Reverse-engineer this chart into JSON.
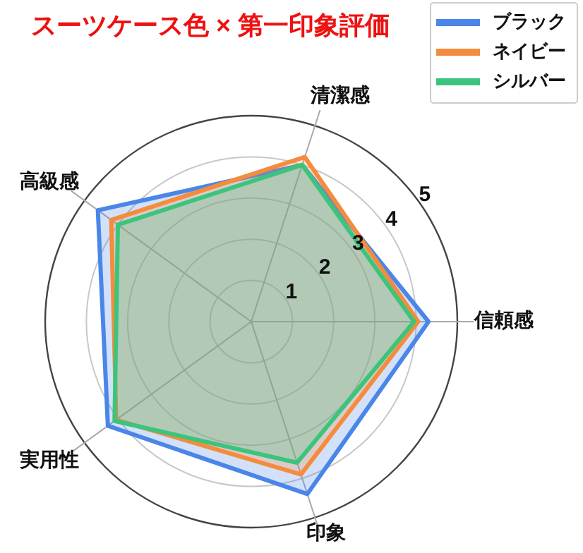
{
  "chart_data": {
    "type": "radar",
    "title": "スーツケース色 × 第一印象評価",
    "categories": [
      "清潔感",
      "信頼感",
      "印象",
      "実用性",
      "高級感"
    ],
    "ylim": [
      0,
      5
    ],
    "yticks": [
      1,
      2,
      3,
      4,
      5
    ],
    "legend": "top right",
    "series": [
      {
        "name": "ブラック",
        "color": "#4a86e8",
        "values": [
          4.0,
          4.3,
          4.4,
          4.3,
          4.6
        ]
      },
      {
        "name": "ネイビー",
        "color": "#f58b3c",
        "values": [
          4.2,
          4.05,
          3.9,
          4.05,
          4.2
        ]
      },
      {
        "name": "シルバー",
        "color": "#3cc47c",
        "values": [
          4.0,
          3.95,
          3.6,
          4.1,
          4.0
        ]
      }
    ]
  }
}
